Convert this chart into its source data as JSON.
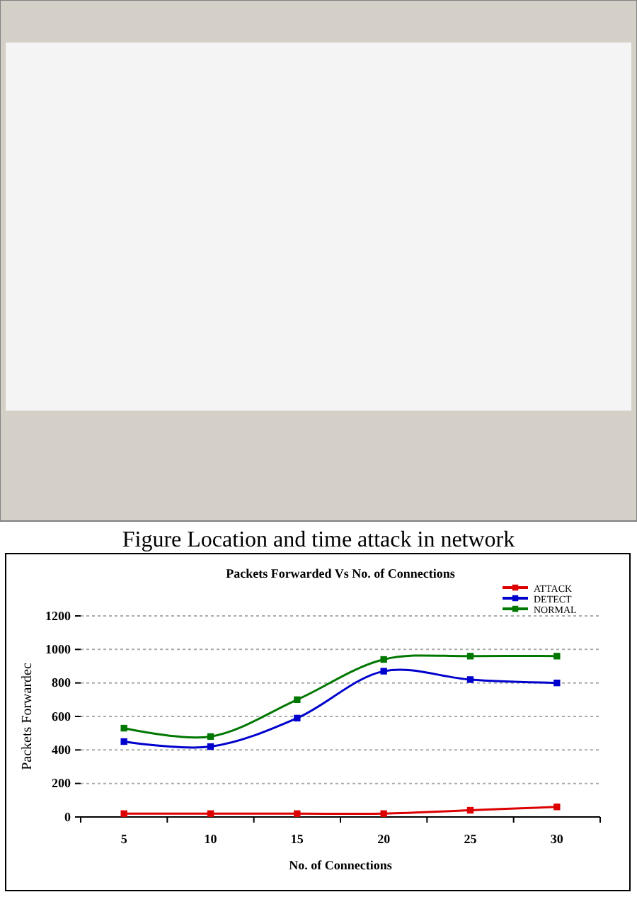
{
  "chart_data": {
    "type": "line",
    "title": "Packets Forwarded Vs No. of Connections",
    "xlabel": "No. of Connections",
    "ylabel": "Packets Forwardec",
    "annotations": [
      "Figure Location and time attack in network"
    ],
    "categories": [
      "5",
      "10",
      "15",
      "20",
      "25",
      "30"
    ],
    "series": [
      {
        "name": "ATTACK",
        "color": "#dd0000",
        "values": [
          20,
          20,
          20,
          20,
          40,
          60
        ]
      },
      {
        "name": "DETECT",
        "color": "#0000cc",
        "values": [
          450,
          420,
          590,
          870,
          820,
          800
        ]
      },
      {
        "name": "NORMAL",
        "color": "#007700",
        "values": [
          530,
          480,
          700,
          940,
          960,
          960
        ]
      }
    ],
    "ylim": [
      0,
      1200
    ],
    "yticks": [
      0,
      200,
      400,
      600,
      800,
      1000,
      1200
    ],
    "grid": "y",
    "legend": "top right",
    "marker": "square",
    "line_style": "solid"
  }
}
